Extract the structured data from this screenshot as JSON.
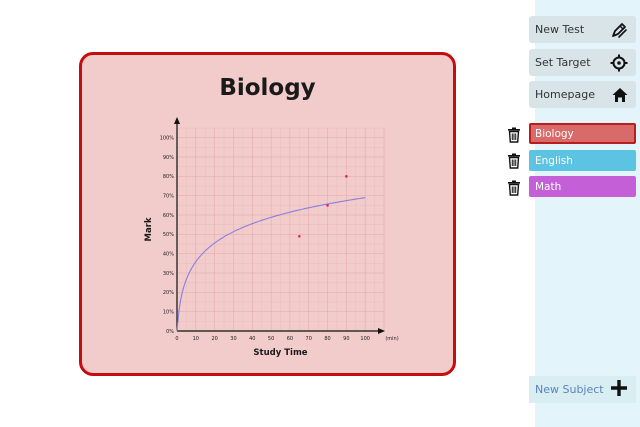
{
  "nav": {
    "new_test": "New Test",
    "set_target": "Set Target",
    "homepage": "Homepage"
  },
  "subjects": [
    {
      "label": "Biology",
      "color": "#d96a6a"
    },
    {
      "label": "English",
      "color": "#5cc3e3"
    },
    {
      "label": "Math",
      "color": "#c45fd8"
    }
  ],
  "new_subject": "New Subject",
  "card": {
    "title": "Biology"
  },
  "chart_data": {
    "type": "scatter",
    "xlabel": "Study Time",
    "ylabel": "Mark",
    "x_unit": "(min)",
    "xlim": [
      0,
      110
    ],
    "ylim": [
      0,
      105
    ],
    "x_ticks": [
      0,
      10,
      20,
      30,
      40,
      50,
      60,
      70,
      80,
      90,
      100
    ],
    "y_ticks": [
      0,
      10,
      20,
      30,
      40,
      50,
      60,
      70,
      80,
      90,
      100
    ],
    "y_tick_labels": [
      "0%",
      "10%",
      "20%",
      "30%",
      "40%",
      "50%",
      "60%",
      "70%",
      "80%",
      "90%",
      "100%"
    ],
    "grid": true,
    "points": [
      {
        "x": 65,
        "y": 49
      },
      {
        "x": 80,
        "y": 65
      },
      {
        "x": 90,
        "y": 80
      }
    ],
    "fit_curve": {
      "type": "logarithmic",
      "a": 0,
      "b": 14.95,
      "offset": 1,
      "x_range": [
        0,
        100
      ]
    },
    "point_color": "#e0245e",
    "curve_color": "#8a7fe0"
  }
}
